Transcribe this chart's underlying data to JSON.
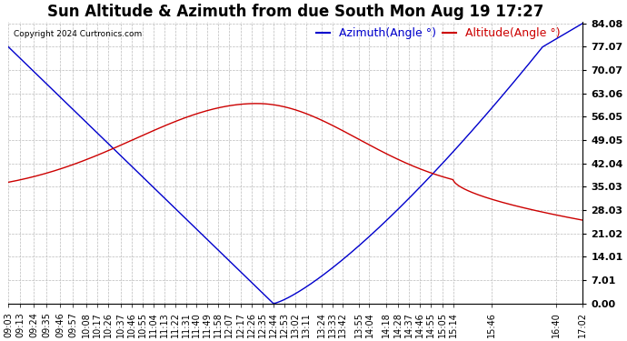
{
  "title": "Sun Altitude & Azimuth from due South Mon Aug 19 17:27",
  "copyright": "Copyright 2024 Curtronics.com",
  "legend_azimuth": "Azimuth(Angle °)",
  "legend_altitude": "Altitude(Angle °)",
  "azimuth_color": "#0000cc",
  "altitude_color": "#cc0000",
  "background_color": "#ffffff",
  "grid_color": "#bbbbbb",
  "yticks": [
    0.0,
    7.01,
    14.01,
    21.02,
    28.03,
    35.03,
    42.04,
    49.05,
    56.05,
    63.06,
    70.07,
    77.07,
    84.08
  ],
  "xtick_labels": [
    "09:03",
    "09:13",
    "09:24",
    "09:35",
    "09:46",
    "09:57",
    "10:08",
    "10:17",
    "10:26",
    "10:37",
    "10:46",
    "10:55",
    "11:04",
    "11:13",
    "11:22",
    "11:31",
    "11:40",
    "11:49",
    "11:58",
    "12:07",
    "12:17",
    "12:26",
    "12:35",
    "12:44",
    "12:53",
    "13:02",
    "13:11",
    "13:24",
    "13:33",
    "13:42",
    "13:55",
    "14:04",
    "14:18",
    "14:28",
    "14:37",
    "14:46",
    "14:55",
    "15:05",
    "15:14",
    "15:46",
    "16:40",
    "17:02"
  ],
  "ymin": 0.0,
  "ymax": 84.08,
  "title_fontsize": 12,
  "axis_fontsize": 7,
  "legend_fontsize": 9
}
